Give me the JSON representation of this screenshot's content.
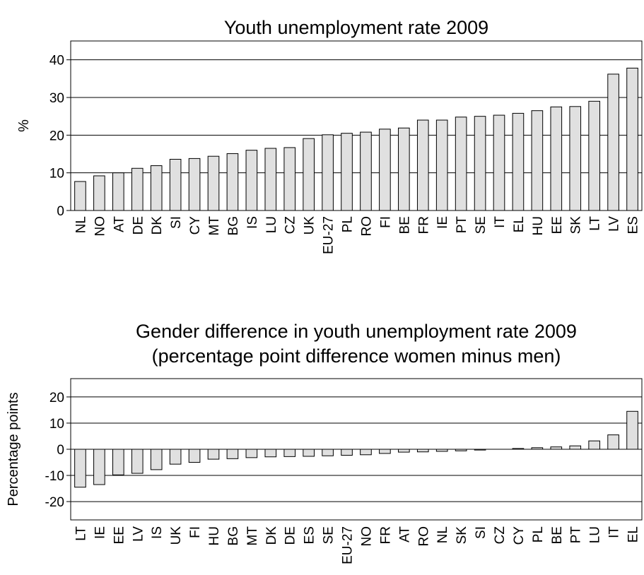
{
  "chart_data": [
    {
      "type": "bar",
      "title": "Youth unemployment rate 2009",
      "xlabel": "",
      "ylabel": "%",
      "ylim": [
        0,
        45
      ],
      "yticks": [
        0,
        10,
        20,
        30,
        40
      ],
      "grid": true,
      "bar_color": "#e0e0e0",
      "categories": [
        "NL",
        "NO",
        "AT",
        "DE",
        "DK",
        "SI",
        "CY",
        "MT",
        "BG",
        "IS",
        "LU",
        "CZ",
        "UK",
        "EU-27",
        "PL",
        "RO",
        "FI",
        "BE",
        "FR",
        "IE",
        "PT",
        "SE",
        "IT",
        "EL",
        "HU",
        "EE",
        "SK",
        "LT",
        "LV",
        "ES"
      ],
      "values": [
        7.7,
        9.2,
        10.0,
        11.2,
        11.9,
        13.6,
        13.8,
        14.4,
        15.1,
        16.0,
        16.5,
        16.7,
        19.1,
        20.1,
        20.5,
        20.8,
        21.6,
        21.9,
        24.0,
        24.0,
        24.8,
        25.0,
        25.3,
        25.8,
        26.5,
        27.5,
        27.6,
        29.0,
        36.2,
        37.8
      ]
    },
    {
      "type": "bar",
      "title": [
        "Gender difference in youth unemployment rate 2009",
        "(percentage point difference women minus men)"
      ],
      "xlabel": "",
      "ylabel": "Percentage points",
      "ylim": [
        -27,
        27
      ],
      "yticks": [
        -20,
        -10,
        0,
        10,
        20
      ],
      "grid": true,
      "bar_color": "#e0e0e0",
      "categories": [
        "LT",
        "IE",
        "EE",
        "LV",
        "IS",
        "UK",
        "FI",
        "HU",
        "BG",
        "MT",
        "DK",
        "DE",
        "ES",
        "SE",
        "EU-27",
        "NO",
        "FR",
        "AT",
        "RO",
        "NL",
        "SK",
        "SI",
        "CZ",
        "CY",
        "PL",
        "BE",
        "PT",
        "LU",
        "IT",
        "EL"
      ],
      "values": [
        -14.5,
        -13.5,
        -9.8,
        -9.2,
        -7.8,
        -5.7,
        -5.0,
        -3.8,
        -3.6,
        -3.2,
        -2.9,
        -2.8,
        -2.7,
        -2.5,
        -2.3,
        -2.1,
        -1.6,
        -1.1,
        -1.0,
        -0.8,
        -0.6,
        -0.3,
        0.0,
        0.3,
        0.6,
        0.9,
        1.3,
        3.2,
        5.5,
        14.5
      ]
    }
  ]
}
